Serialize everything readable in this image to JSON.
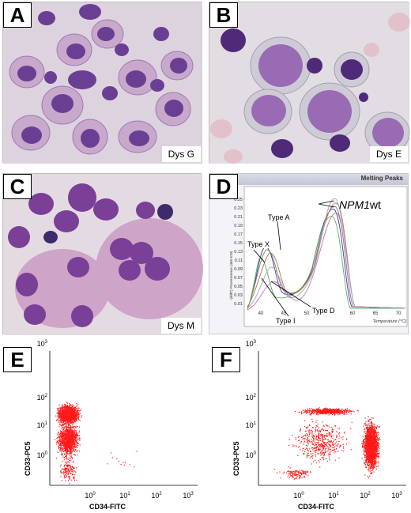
{
  "panels": {
    "a": {
      "letter": "A",
      "tag": "Dys G"
    },
    "b": {
      "letter": "B",
      "tag": "Dys E"
    },
    "c": {
      "letter": "C",
      "tag": "Dys M"
    },
    "d": {
      "letter": "D",
      "title": "Melting Peaks",
      "ylabel": "-(d/dT) Fluorescence (465-510)",
      "xlabel": "Temperature (°C)",
      "yticks": [
        "0.25",
        "0.23",
        "0.21",
        "0.19",
        "0.17",
        "0.15",
        "0.13",
        "0.11",
        "0.09",
        "0.07",
        "0.05",
        "0.03",
        "0.01"
      ],
      "xticks": [
        "40",
        "45",
        "50",
        "55",
        "60",
        "65",
        "70"
      ],
      "annotations": {
        "type_x": "Type X",
        "type_a": "Type A",
        "type_d": "Type D",
        "type_i": "Type I",
        "npm1_gene": "NPM1",
        "npm1_suffix": "wt"
      }
    },
    "e": {
      "letter": "E",
      "ylabel": "CD33-PC5",
      "xlabel": "CD34-FITC"
    },
    "f": {
      "letter": "F",
      "ylabel": "CD33-PC5",
      "xlabel": "CD34-FITC"
    }
  },
  "flow_axis": {
    "ticks_base": "10",
    "y_exponents": [
      "3",
      "2",
      "1",
      "0"
    ],
    "x_exponents": [
      "0",
      "1",
      "2",
      "3"
    ]
  },
  "colors": {
    "dots": "#ff1a1a",
    "stain": "#6a3f93",
    "cell_pink": "#c9a2c7"
  }
}
